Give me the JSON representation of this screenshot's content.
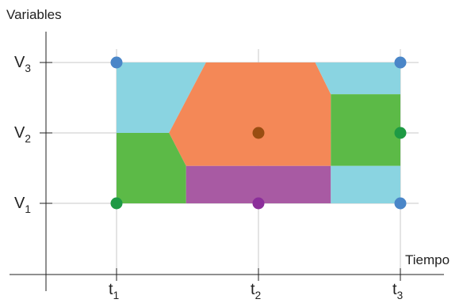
{
  "axes": {
    "y_title": "Variables",
    "x_title": "Tiempo",
    "y_ticks": [
      {
        "base": "V",
        "sub": "1"
      },
      {
        "base": "V",
        "sub": "2"
      },
      {
        "base": "V",
        "sub": "3"
      }
    ],
    "x_ticks": [
      {
        "base": "t",
        "sub": "1"
      },
      {
        "base": "t",
        "sub": "2"
      },
      {
        "base": "t",
        "sub": "3"
      }
    ]
  },
  "colors": {
    "light_blue": "#8ad4e1",
    "orange": "#f48857",
    "green": "#5cba47",
    "purple": "#a85aa3",
    "dot_blue": "#4a86c8",
    "dot_brown": "#994d12",
    "dot_green": "#1e9a44",
    "dot_purple": "#8b2e9a",
    "axis": "#222222",
    "grid": "#c8c8c8"
  },
  "regions": [
    {
      "name": "top-left-blue-region",
      "color": "light_blue",
      "points": [
        [
          1,
          3
        ],
        [
          1.63,
          3
        ],
        [
          1.37,
          2
        ],
        [
          1,
          2
        ]
      ]
    },
    {
      "name": "orange-region",
      "color": "orange",
      "points": [
        [
          1.63,
          3
        ],
        [
          2.4,
          3
        ],
        [
          2.51,
          2.55
        ],
        [
          2.51,
          1.53
        ],
        [
          1.49,
          1.53
        ],
        [
          1.37,
          2
        ]
      ]
    },
    {
      "name": "top-right-blue-region",
      "color": "light_blue",
      "points": [
        [
          2.4,
          3
        ],
        [
          3,
          3
        ],
        [
          3,
          2.55
        ],
        [
          2.51,
          2.55
        ]
      ]
    },
    {
      "name": "left-green-region",
      "color": "green",
      "points": [
        [
          1,
          2
        ],
        [
          1.37,
          2
        ],
        [
          1.49,
          1.53
        ],
        [
          1.49,
          1
        ],
        [
          1,
          1
        ]
      ]
    },
    {
      "name": "purple-region",
      "color": "purple",
      "points": [
        [
          1.49,
          1.53
        ],
        [
          2.51,
          1.53
        ],
        [
          2.51,
          1
        ],
        [
          1.49,
          1
        ]
      ]
    },
    {
      "name": "right-green-region",
      "color": "green",
      "points": [
        [
          2.51,
          2.55
        ],
        [
          3,
          2.55
        ],
        [
          3,
          1.53
        ],
        [
          2.51,
          1.53
        ]
      ]
    },
    {
      "name": "bottom-right-blue-region",
      "color": "light_blue",
      "points": [
        [
          2.51,
          1.53
        ],
        [
          3,
          1.53
        ],
        [
          3,
          1
        ],
        [
          2.51,
          1
        ]
      ]
    }
  ],
  "points": [
    {
      "name": "point-t1-v3",
      "t": 1,
      "v": 3,
      "color": "dot_blue"
    },
    {
      "name": "point-t3-v3",
      "t": 3,
      "v": 3,
      "color": "dot_blue"
    },
    {
      "name": "point-t2-v2",
      "t": 2,
      "v": 2,
      "color": "dot_brown"
    },
    {
      "name": "point-t3-v2",
      "t": 3,
      "v": 2,
      "color": "dot_green"
    },
    {
      "name": "point-t1-v1",
      "t": 1,
      "v": 1,
      "color": "dot_green"
    },
    {
      "name": "point-t2-v1",
      "t": 2,
      "v": 1,
      "color": "dot_purple"
    },
    {
      "name": "point-t3-v1",
      "t": 3,
      "v": 1,
      "color": "dot_blue"
    }
  ]
}
